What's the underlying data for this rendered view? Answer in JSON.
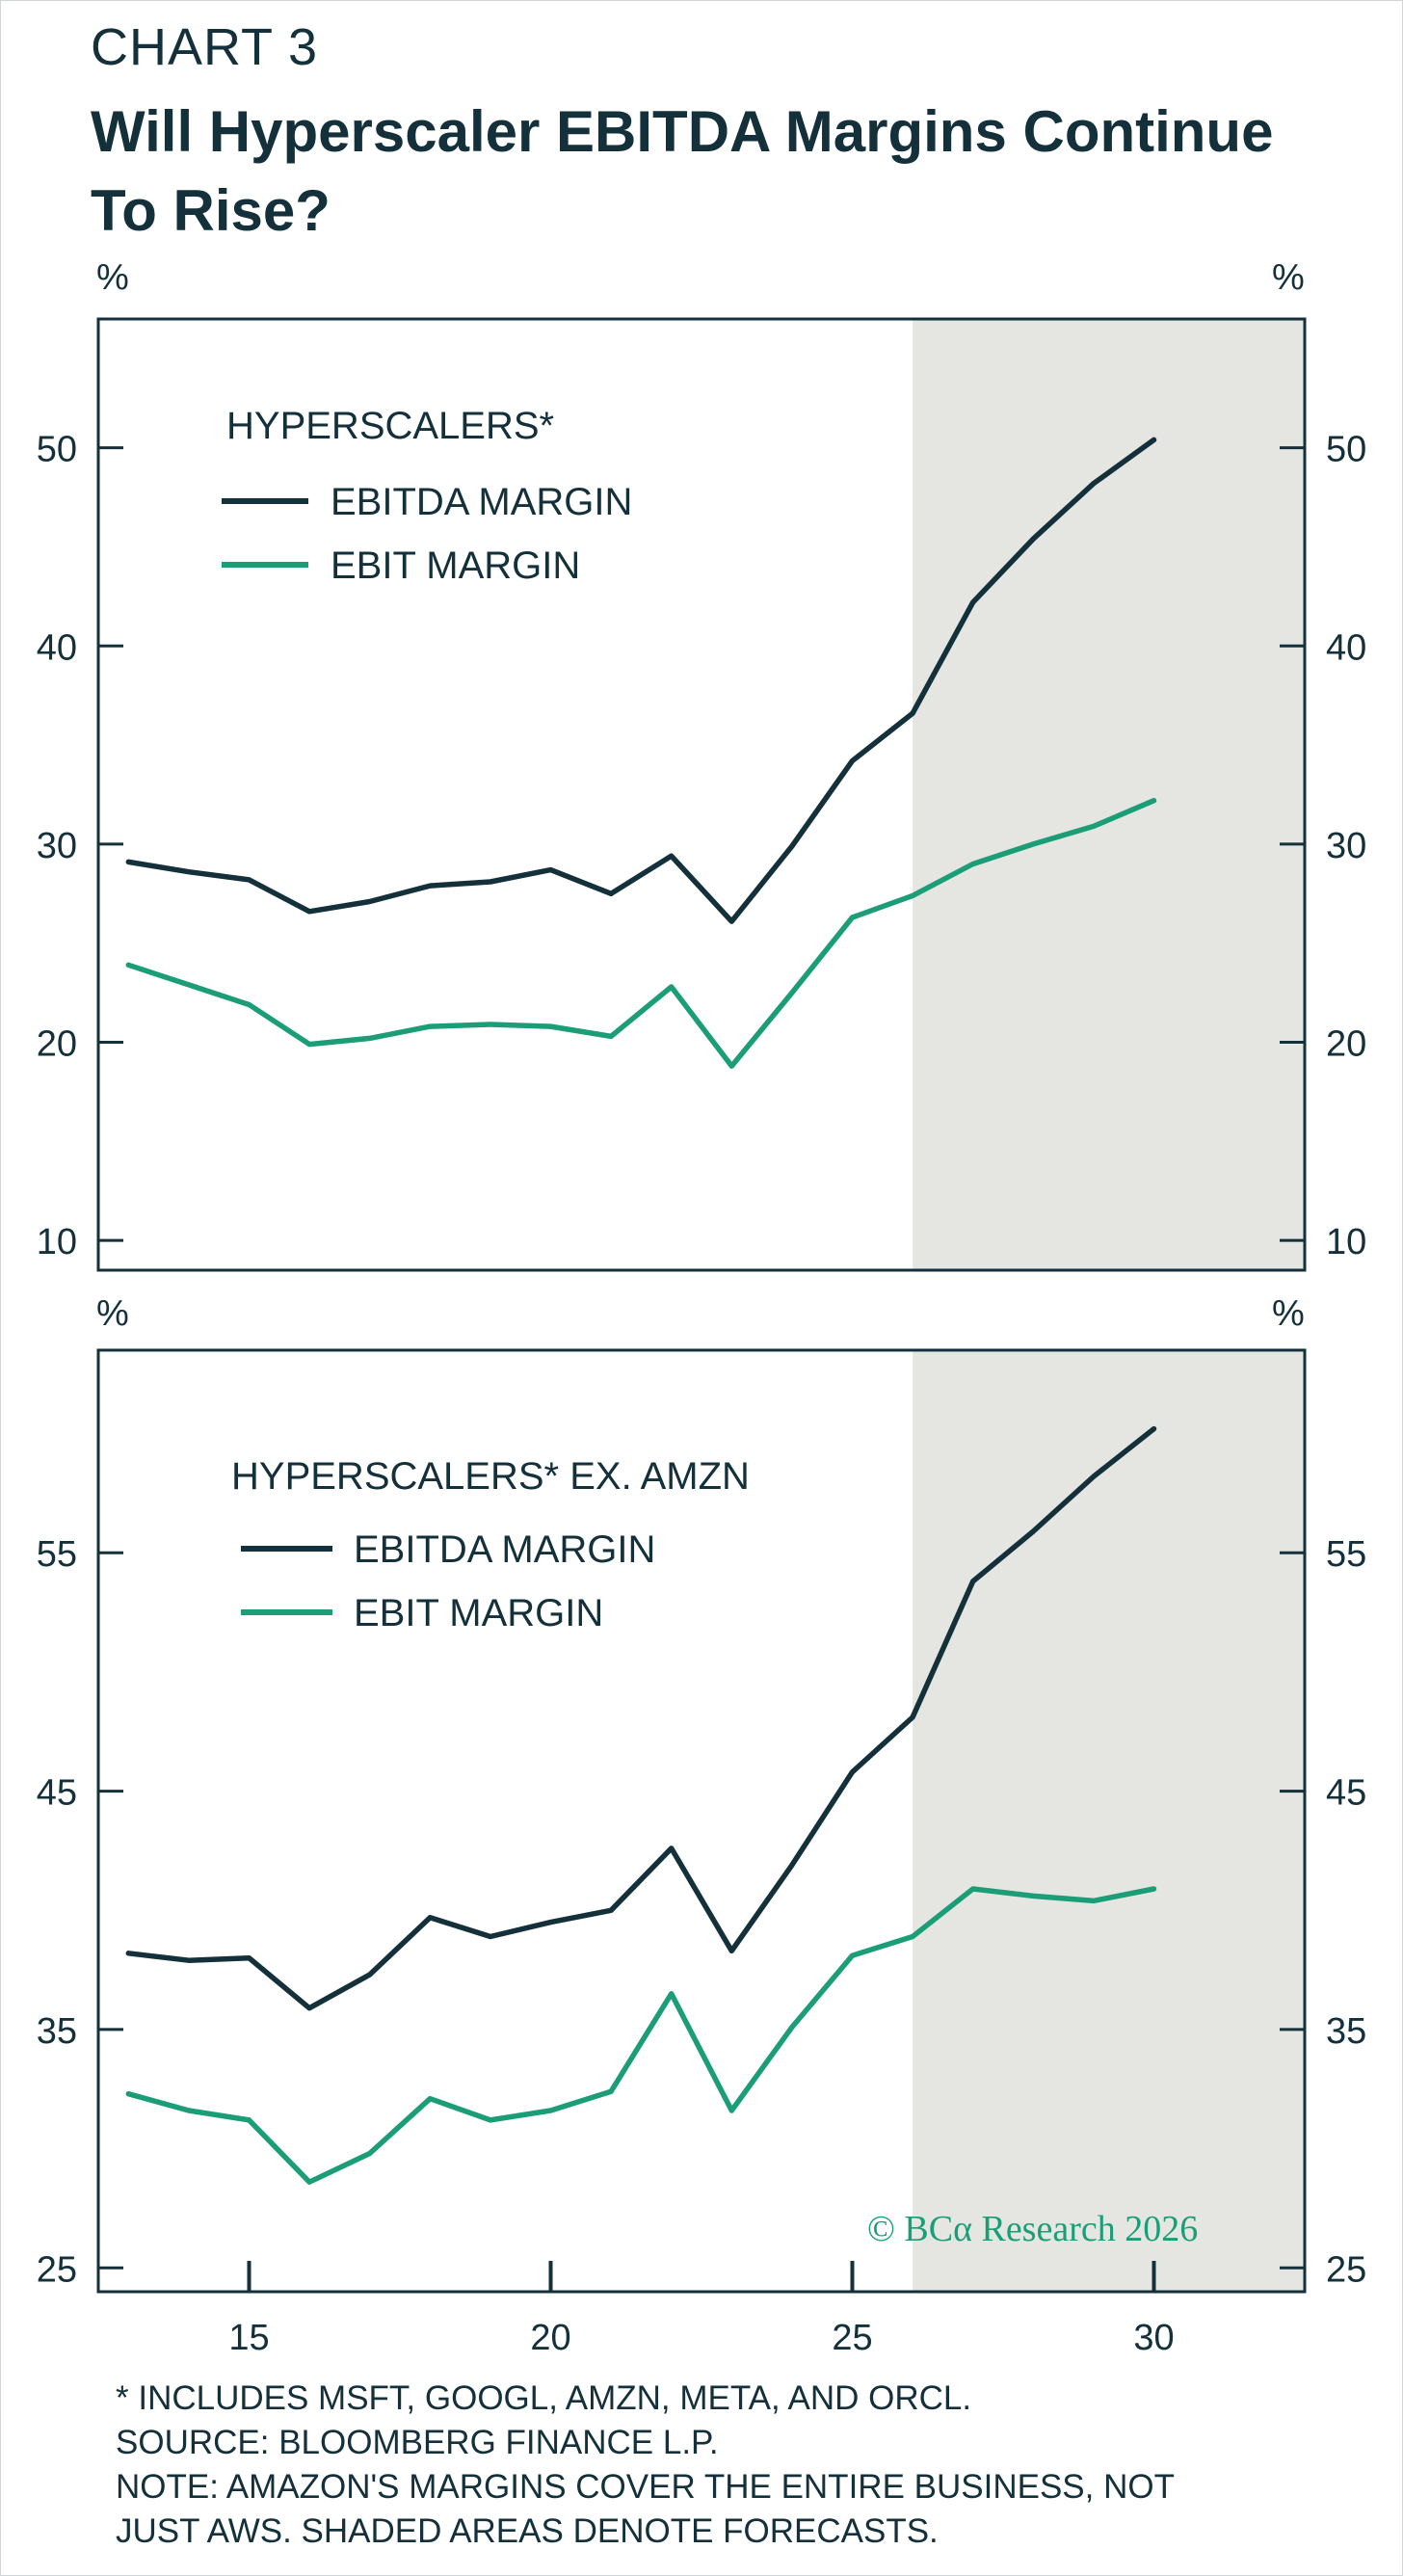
{
  "header": {
    "chart_label": "CHART 3",
    "title": "Will Hyperscaler EBITDA Margins Continue To Rise?"
  },
  "footnotes": [
    "* INCLUDES MSFT, GOOGL, AMZN, META, AND ORCL.",
    "SOURCE: BLOOMBERG FINANCE L.P.",
    "NOTE: AMAZON'S MARGINS COVER THE ENTIRE BUSINESS, NOT",
    "JUST AWS. SHADED AREAS DENOTE FORECASTS."
  ],
  "copyright": "© BCα Research 2026",
  "colors": {
    "ebitda": "#14303a",
    "ebit": "#1b9e78",
    "forecast_shade": "#e5e6e1",
    "axis": "#14303a"
  },
  "chart_data": [
    {
      "type": "line",
      "legend_title": "HYPERSCALERS*",
      "y_unit": "%",
      "ylim": [
        8.5,
        56.5
      ],
      "yticks": [
        10,
        20,
        30,
        40,
        50
      ],
      "xlim": [
        2012.5,
        2032.5
      ],
      "xticks": [
        15,
        20,
        25,
        30
      ],
      "forecast_start": 2026,
      "x": [
        2013,
        2014,
        2015,
        2016,
        2017,
        2018,
        2019,
        2020,
        2021,
        2022,
        2023,
        2024,
        2025,
        2026,
        2027,
        2028,
        2029,
        2030
      ],
      "series": [
        {
          "name": "EBITDA MARGIN",
          "color": "#14303a",
          "values": [
            29.1,
            28.6,
            28.2,
            26.6,
            27.1,
            27.9,
            28.1,
            28.7,
            27.5,
            29.4,
            26.1,
            29.9,
            34.2,
            36.6,
            42.2,
            45.4,
            48.2,
            50.4
          ]
        },
        {
          "name": "EBIT MARGIN",
          "color": "#1b9e78",
          "values": [
            23.9,
            22.9,
            21.9,
            19.9,
            20.2,
            20.8,
            20.9,
            20.8,
            20.3,
            22.8,
            18.8,
            22.5,
            26.3,
            27.4,
            29.0,
            30.0,
            30.9,
            32.2
          ]
        }
      ]
    },
    {
      "type": "line",
      "legend_title": "HYPERSCALERS* EX. AMZN",
      "y_unit": "%",
      "ylim": [
        24,
        63.5
      ],
      "yticks": [
        25,
        35,
        45,
        55
      ],
      "xlim": [
        2012.5,
        2032.5
      ],
      "xticks": [
        15,
        20,
        25,
        30
      ],
      "forecast_start": 2026,
      "x": [
        2013,
        2014,
        2015,
        2016,
        2017,
        2018,
        2019,
        2020,
        2021,
        2022,
        2023,
        2024,
        2025,
        2026,
        2027,
        2028,
        2029,
        2030
      ],
      "series": [
        {
          "name": "EBITDA MARGIN",
          "color": "#14303a",
          "values": [
            38.2,
            37.9,
            38.0,
            35.9,
            37.3,
            39.7,
            38.9,
            39.5,
            40.0,
            42.6,
            38.3,
            41.9,
            45.8,
            48.1,
            53.8,
            55.9,
            58.2,
            60.2
          ]
        },
        {
          "name": "EBIT MARGIN",
          "color": "#1b9e78",
          "values": [
            32.3,
            31.6,
            31.2,
            28.6,
            29.8,
            32.1,
            31.2,
            31.6,
            32.4,
            36.5,
            31.6,
            35.1,
            38.1,
            38.9,
            40.9,
            40.6,
            40.4,
            40.9
          ]
        }
      ]
    }
  ]
}
